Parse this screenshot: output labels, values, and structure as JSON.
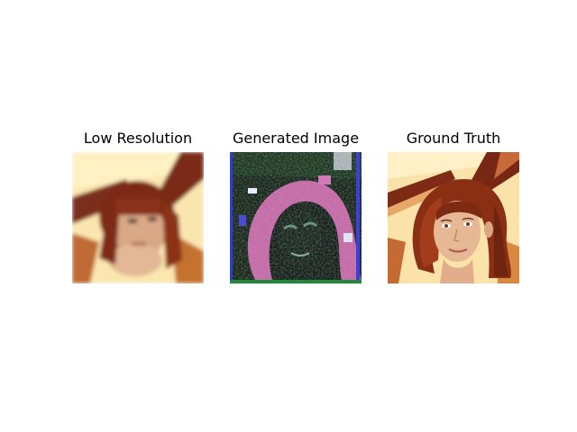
{
  "panels": [
    {
      "title": "Low Resolution"
    },
    {
      "title": "Generated Image"
    },
    {
      "title": "Ground Truth"
    }
  ]
}
